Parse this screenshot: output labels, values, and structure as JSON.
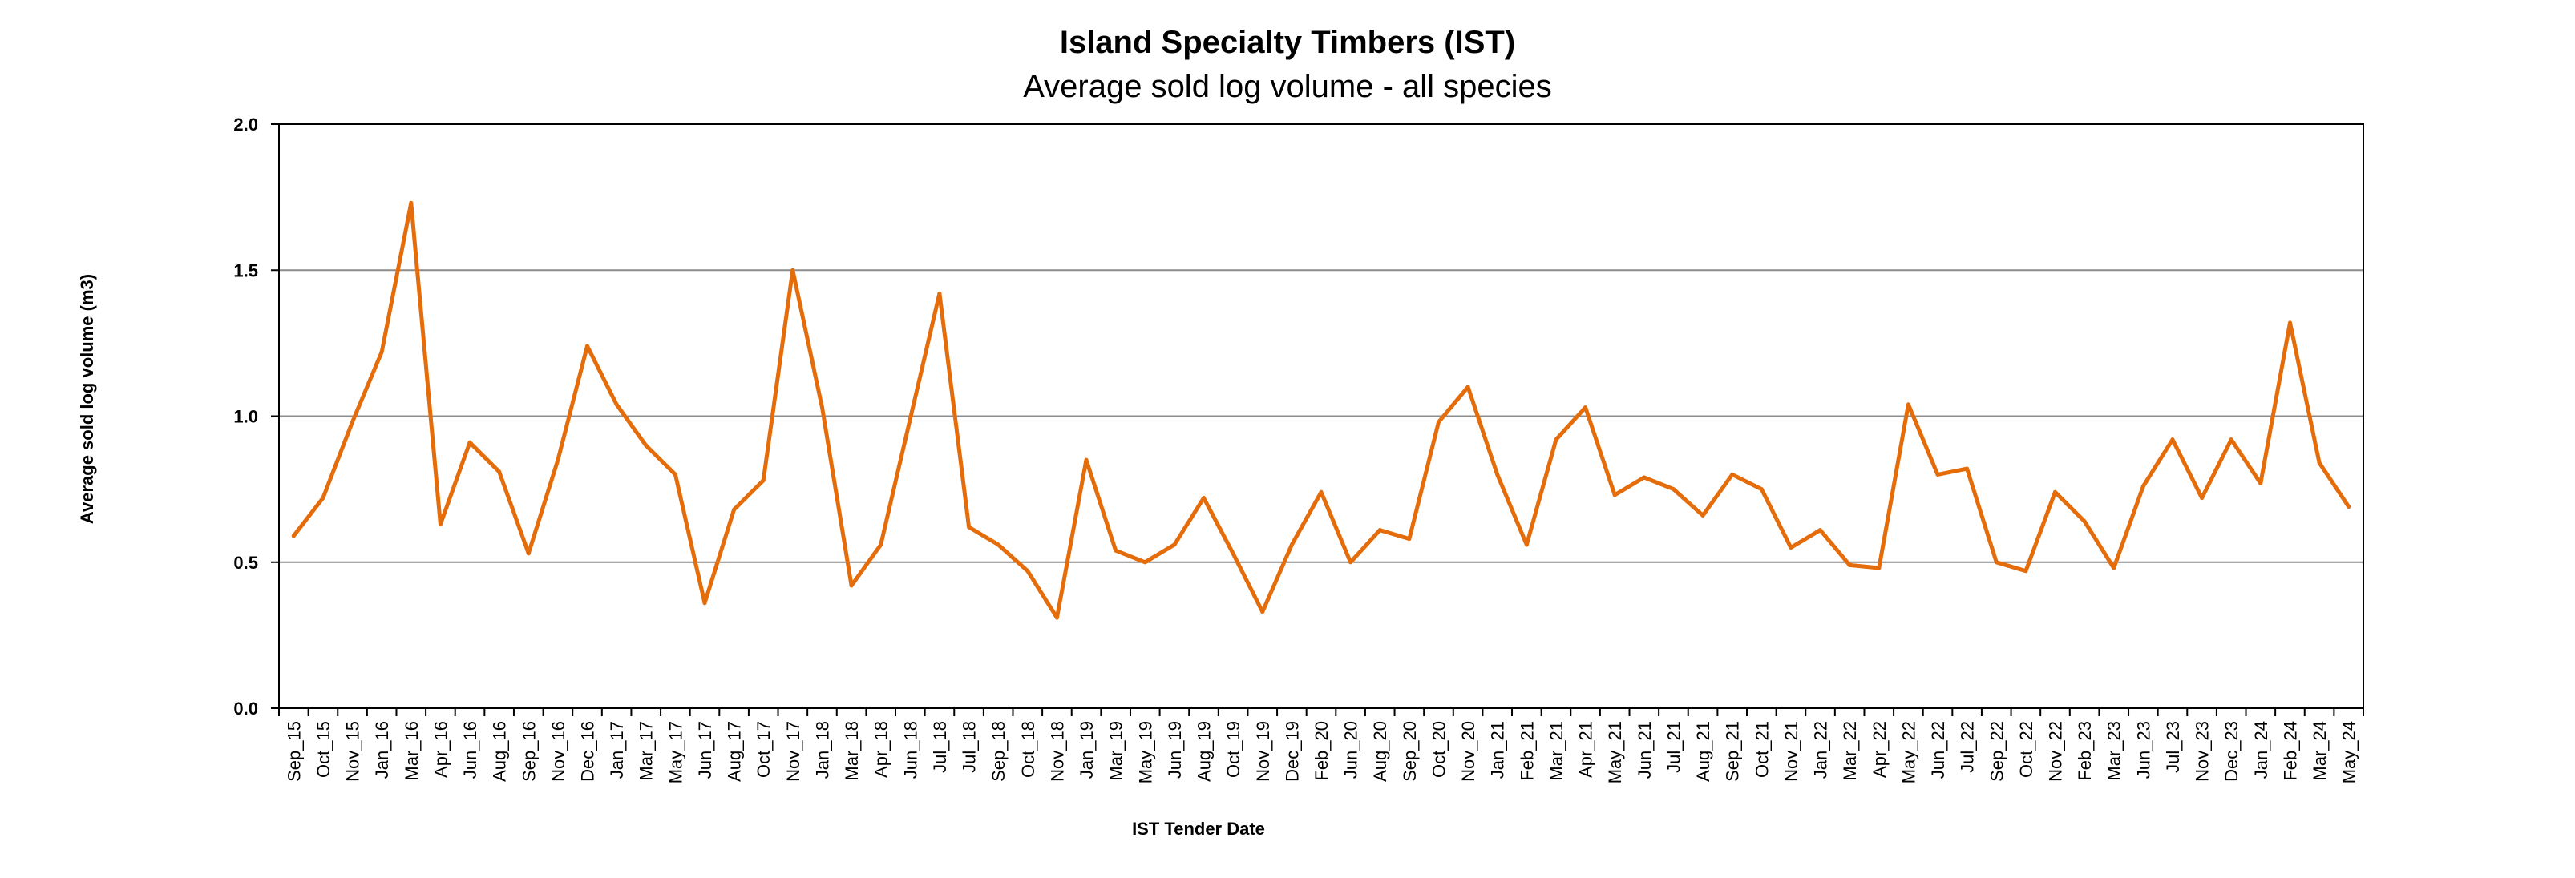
{
  "chart_data": {
    "type": "line",
    "title": "Island Specialty Timbers (IST)",
    "subtitle": "Average sold log volume - all species",
    "xlabel": "IST Tender Date",
    "ylabel": "Average sold log volume (m3)",
    "ylim": [
      0,
      2
    ],
    "yticks": [
      "0.0",
      "0.5",
      "1.0",
      "1.5",
      "2.0"
    ],
    "grid": true,
    "line_color": "#E46C0A",
    "categories": [
      "Sep_15",
      "Oct_15",
      "Nov_15",
      "Jan_16",
      "Mar_16",
      "Apr_16",
      "Jun_16",
      "Aug_16",
      "Sep_16",
      "Nov_16",
      "Dec_16",
      "Jan_17",
      "Mar_17",
      "May_17",
      "Jun_17",
      "Aug_17",
      "Oct_17",
      "Nov_17",
      "Jan_18",
      "Mar_18",
      "Apr_18",
      "Jun_18",
      "Jul_18",
      "Jul_18",
      "Sep_18",
      "Oct_18",
      "Nov_18",
      "Jan_19",
      "Mar_19",
      "May_19",
      "Jun_19",
      "Aug_19",
      "Oct_19",
      "Nov_19",
      "Dec_19",
      "Feb_20",
      "Jun_20",
      "Aug_20",
      "Sep_20",
      "Oct_20",
      "Nov_20",
      "Jan_21",
      "Feb_21",
      "Mar_21",
      "Apr_21",
      "May_21",
      "Jun_21",
      "Jul_21",
      "Aug_21",
      "Sep_21",
      "Oct_21",
      "Nov_21",
      "Jan_22",
      "Mar_22",
      "Apr_22",
      "May_22",
      "Jun_22",
      "Jul_22",
      "Sep_22",
      "Oct_22",
      "Nov_22",
      "Feb_23",
      "Mar_23",
      "Jun_23",
      "Jul_23",
      "Nov_23",
      "Dec_23",
      "Jan_24",
      "Feb_24",
      "Mar_24",
      "May_24"
    ],
    "series": [
      {
        "values": [
          0.59,
          0.72,
          0.98,
          1.22,
          1.73,
          0.63,
          0.91,
          0.81,
          0.53,
          0.85,
          1.24,
          1.04,
          0.9,
          0.8,
          0.36,
          0.68,
          0.78,
          1.5,
          1.03,
          0.42,
          0.56,
          0.99,
          1.42,
          0.62,
          0.56,
          0.47,
          0.31,
          0.85,
          0.54,
          0.5,
          0.56,
          0.72,
          0.53,
          0.33,
          0.56,
          0.74,
          0.5,
          0.61,
          0.58,
          0.98,
          1.1,
          0.8,
          0.56,
          0.92,
          1.03,
          0.73,
          0.79,
          0.75,
          0.66,
          0.8,
          0.75,
          0.55,
          0.61,
          0.49,
          0.48,
          1.04,
          0.8,
          0.82,
          0.5,
          0.47,
          0.74,
          0.64,
          0.48,
          0.76,
          0.92,
          0.72,
          0.92,
          0.77,
          1.32,
          0.84,
          0.69
        ]
      }
    ]
  }
}
